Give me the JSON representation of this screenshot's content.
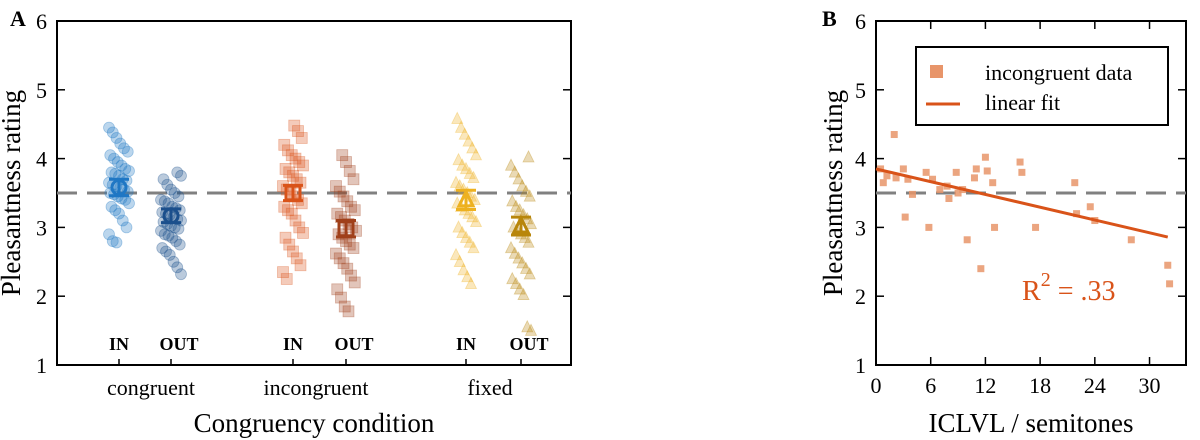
{
  "panels": [
    {
      "letter": "A"
    },
    {
      "letter": "B"
    }
  ],
  "chart_data": [
    {
      "type": "scatter",
      "panel": "A",
      "ylabel": "Pleasantness rating",
      "xlabel": "Congruency condition",
      "ylim": [
        1,
        6
      ],
      "yticks": [
        1,
        2,
        3,
        4,
        5,
        6
      ],
      "reference_line": 3.5,
      "categories": [
        "congruent",
        "incongruent",
        "fixed"
      ],
      "sublabels": [
        "IN",
        "OUT"
      ],
      "groups": [
        {
          "condition": "congruent",
          "sub": "IN",
          "x": 1,
          "marker": "circle",
          "color": "#1f77c4",
          "mean": 3.58,
          "se": 0.12,
          "values": [
            4.45,
            4.38,
            4.3,
            4.22,
            4.15,
            4.1,
            4.05,
            4.0,
            3.95,
            3.9,
            3.85,
            3.82,
            3.8,
            3.78,
            3.75,
            3.7,
            3.68,
            3.65,
            3.62,
            3.6,
            3.58,
            3.55,
            3.52,
            3.5,
            3.48,
            3.45,
            3.42,
            3.4,
            3.35,
            3.3,
            3.25,
            3.2,
            3.1,
            3.0,
            2.9,
            2.8,
            2.78
          ]
        },
        {
          "condition": "congruent",
          "sub": "OUT",
          "x": 2,
          "marker": "circle",
          "color": "#1b4f8c",
          "mean": 3.17,
          "se": 0.1,
          "values": [
            3.8,
            3.75,
            3.7,
            3.62,
            3.55,
            3.5,
            3.45,
            3.4,
            3.38,
            3.35,
            3.3,
            3.28,
            3.25,
            3.22,
            3.2,
            3.18,
            3.15,
            3.12,
            3.1,
            3.08,
            3.05,
            3.02,
            3.0,
            2.98,
            2.95,
            2.9,
            2.88,
            2.85,
            2.8,
            2.75,
            2.7,
            2.65,
            2.6,
            2.5,
            2.42,
            2.32
          ]
        },
        {
          "condition": "incongruent",
          "sub": "IN",
          "x": 3,
          "marker": "square",
          "color": "#d95319",
          "mean": 3.5,
          "se": 0.11,
          "values": [
            4.48,
            4.4,
            4.3,
            4.2,
            4.12,
            4.05,
            4.0,
            3.95,
            3.9,
            3.85,
            3.8,
            3.75,
            3.7,
            3.65,
            3.6,
            3.55,
            3.5,
            3.45,
            3.4,
            3.35,
            3.3,
            3.25,
            3.2,
            3.1,
            3.0,
            2.92,
            2.85,
            2.75,
            2.65,
            2.55,
            2.45,
            2.35,
            2.25
          ]
        },
        {
          "condition": "incongruent",
          "sub": "OUT",
          "x": 4,
          "marker": "square",
          "color": "#a0401a",
          "mean": 2.98,
          "se": 0.12,
          "values": [
            4.05,
            3.95,
            3.82,
            3.7,
            3.6,
            3.52,
            3.45,
            3.38,
            3.3,
            3.25,
            3.2,
            3.15,
            3.1,
            3.05,
            3.0,
            2.95,
            2.9,
            2.85,
            2.8,
            2.75,
            2.7,
            2.62,
            2.55,
            2.48,
            2.4,
            2.3,
            2.2,
            2.1,
            1.98,
            1.85,
            1.78
          ]
        },
        {
          "condition": "fixed",
          "sub": "IN",
          "x": 5,
          "marker": "triangle",
          "color": "#edb120",
          "mean": 3.4,
          "se": 0.14,
          "values": [
            4.58,
            4.45,
            4.35,
            4.25,
            4.15,
            4.05,
            3.98,
            3.9,
            3.85,
            3.78,
            3.72,
            3.65,
            3.6,
            3.55,
            3.5,
            3.45,
            3.4,
            3.35,
            3.3,
            3.25,
            3.2,
            3.15,
            3.08,
            3.0,
            2.92,
            2.85,
            2.78,
            2.7,
            2.6,
            2.5,
            2.38,
            2.28,
            2.18
          ]
        },
        {
          "condition": "fixed",
          "sub": "OUT",
          "x": 6,
          "marker": "triangle",
          "color": "#b8860b",
          "mean": 3.02,
          "se": 0.13,
          "values": [
            4.02,
            3.9,
            3.8,
            3.7,
            3.6,
            3.52,
            3.45,
            3.38,
            3.3,
            3.25,
            3.18,
            3.12,
            3.05,
            3.0,
            2.95,
            2.9,
            2.85,
            2.78,
            2.7,
            2.62,
            2.55,
            2.48,
            2.4,
            2.32,
            2.25,
            2.18,
            2.1,
            2.02,
            1.55,
            1.5
          ]
        }
      ]
    },
    {
      "type": "scatter",
      "panel": "B",
      "ylabel": "Pleasantness rating",
      "xlabel": "ICLVL / semitones",
      "xlim": [
        0,
        34
      ],
      "ylim": [
        1,
        6
      ],
      "xticks": [
        0,
        6,
        12,
        18,
        24,
        30
      ],
      "yticks": [
        1,
        2,
        3,
        4,
        5,
        6
      ],
      "reference_line": 3.5,
      "series": [
        {
          "name": "incongruent data",
          "color": "#e8956a",
          "points": [
            [
              0.5,
              3.85
            ],
            [
              0.8,
              3.65
            ],
            [
              1.2,
              3.75
            ],
            [
              2.0,
              4.35
            ],
            [
              2.2,
              3.72
            ],
            [
              3.0,
              3.85
            ],
            [
              3.5,
              3.7
            ],
            [
              3.2,
              3.15
            ],
            [
              4.0,
              3.48
            ],
            [
              5.5,
              3.8
            ],
            [
              5.8,
              3.0
            ],
            [
              6.2,
              3.7
            ],
            [
              7.0,
              3.55
            ],
            [
              7.8,
              3.6
            ],
            [
              8.0,
              3.42
            ],
            [
              8.8,
              3.8
            ],
            [
              9.0,
              3.5
            ],
            [
              9.5,
              3.55
            ],
            [
              10.0,
              2.82
            ],
            [
              10.8,
              3.72
            ],
            [
              11.0,
              3.85
            ],
            [
              11.5,
              2.4
            ],
            [
              12.0,
              4.02
            ],
            [
              12.2,
              3.82
            ],
            [
              12.8,
              3.65
            ],
            [
              13.0,
              3.0
            ],
            [
              15.8,
              3.95
            ],
            [
              16.0,
              3.8
            ],
            [
              17.5,
              3.0
            ],
            [
              21.8,
              3.65
            ],
            [
              22.0,
              3.2
            ],
            [
              23.5,
              3.3
            ],
            [
              24.0,
              3.1
            ],
            [
              28.0,
              2.82
            ],
            [
              32.0,
              2.45
            ],
            [
              32.2,
              2.18
            ]
          ]
        },
        {
          "name": "linear fit",
          "color": "#d95319",
          "line": [
            [
              0,
              3.85
            ],
            [
              32,
              2.86
            ]
          ]
        }
      ],
      "legend": [
        "incongruent data",
        "linear fit"
      ],
      "legend_placement": "top-right",
      "annotation": {
        "text_main": "R",
        "text_sup": "2",
        "text_rest": " = .33"
      }
    }
  ]
}
